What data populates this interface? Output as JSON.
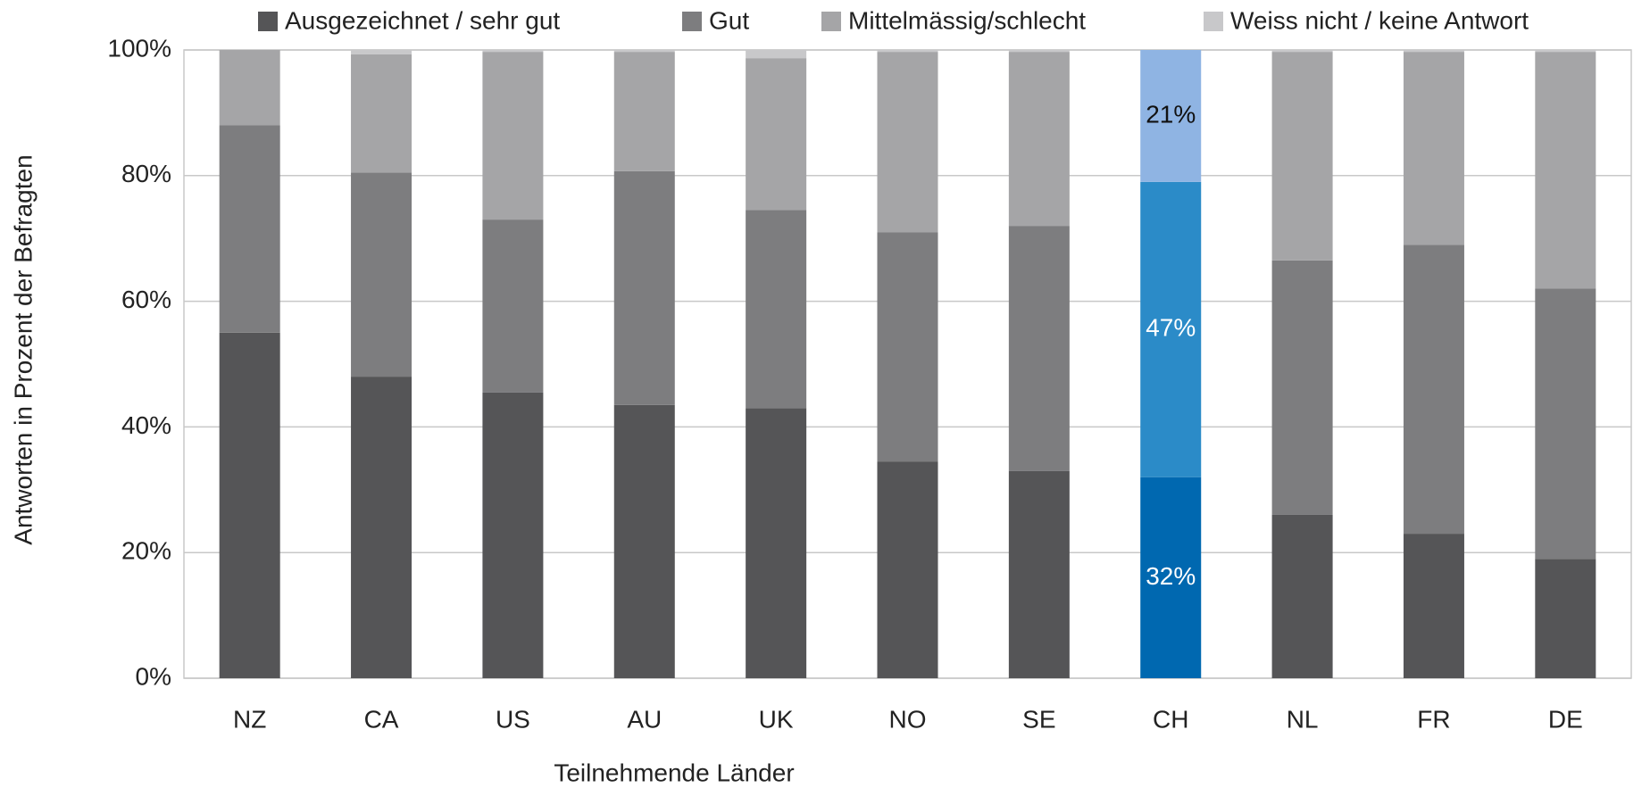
{
  "chart_data": {
    "type": "stacked_bar",
    "x_label": "Teilnehmende Länder",
    "y_label": "Antworten in Prozent der Befragten",
    "categories": [
      "NZ",
      "CA",
      "US",
      "AU",
      "UK",
      "NO",
      "SE",
      "CH",
      "NL",
      "FR",
      "DE"
    ],
    "highlight_category": "CH",
    "series": [
      {
        "name": "Ausgezeichnet / sehr gut",
        "color": "#555557",
        "highlight_color": "#0068b0",
        "values": [
          55,
          48,
          45.5,
          43.5,
          43,
          34.5,
          33,
          32,
          26,
          23,
          19
        ],
        "value_labels": [
          null,
          null,
          null,
          null,
          null,
          null,
          null,
          "32%",
          null,
          null,
          null
        ]
      },
      {
        "name": "Gut",
        "color": "#7d7d7f",
        "highlight_color": "#2b8bc8",
        "values": [
          33,
          32.5,
          27.5,
          37.2,
          31.5,
          36.5,
          39,
          47,
          40.5,
          46,
          43
        ],
        "value_labels": [
          null,
          null,
          null,
          null,
          null,
          null,
          null,
          "47%",
          null,
          null,
          null
        ]
      },
      {
        "name": "Mittelmässig/schlecht",
        "color": "#a5a5a7",
        "highlight_color": "#8fb4e3",
        "values": [
          12,
          18.8,
          26.7,
          19,
          24.2,
          28.7,
          27.7,
          21,
          33.2,
          30.7,
          37.7
        ],
        "value_labels": [
          null,
          null,
          null,
          null,
          null,
          null,
          null,
          "21%",
          null,
          null,
          null
        ]
      },
      {
        "name": "Weiss nicht / keine Antwort",
        "color": "#c8c8ca",
        "highlight_color": "#c8c8ca",
        "values": [
          0,
          0.7,
          0.3,
          0.3,
          1.3,
          0.3,
          0.3,
          0,
          0.3,
          0.3,
          0.3
        ]
      }
    ],
    "ylim": [
      0,
      100
    ],
    "yticks": [
      {
        "value": 0,
        "label": "0%"
      },
      {
        "value": 20,
        "label": "20%"
      },
      {
        "value": 40,
        "label": "40%"
      },
      {
        "value": 60,
        "label": "60%"
      },
      {
        "value": 80,
        "label": "80%"
      },
      {
        "value": 100,
        "label": "100%"
      }
    ],
    "grid": true,
    "legend": "top"
  }
}
